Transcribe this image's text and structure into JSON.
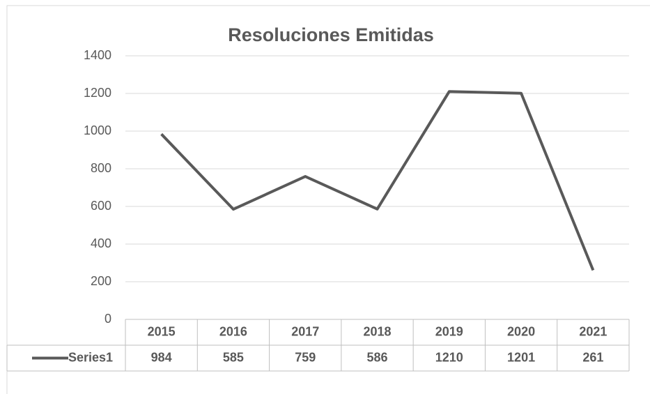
{
  "chart_data": {
    "type": "line",
    "title": "Resoluciones Emitidas",
    "categories": [
      "2015",
      "2016",
      "2017",
      "2018",
      "2019",
      "2020",
      "2021"
    ],
    "series": [
      {
        "name": "Series1",
        "color": "#595959",
        "values": [
          984,
          585,
          759,
          586,
          1210,
          1201,
          261
        ]
      }
    ],
    "ylim": [
      0,
      1400
    ],
    "yticks": [
      0,
      200,
      400,
      600,
      800,
      1000,
      1200,
      1400
    ],
    "grid": true
  }
}
